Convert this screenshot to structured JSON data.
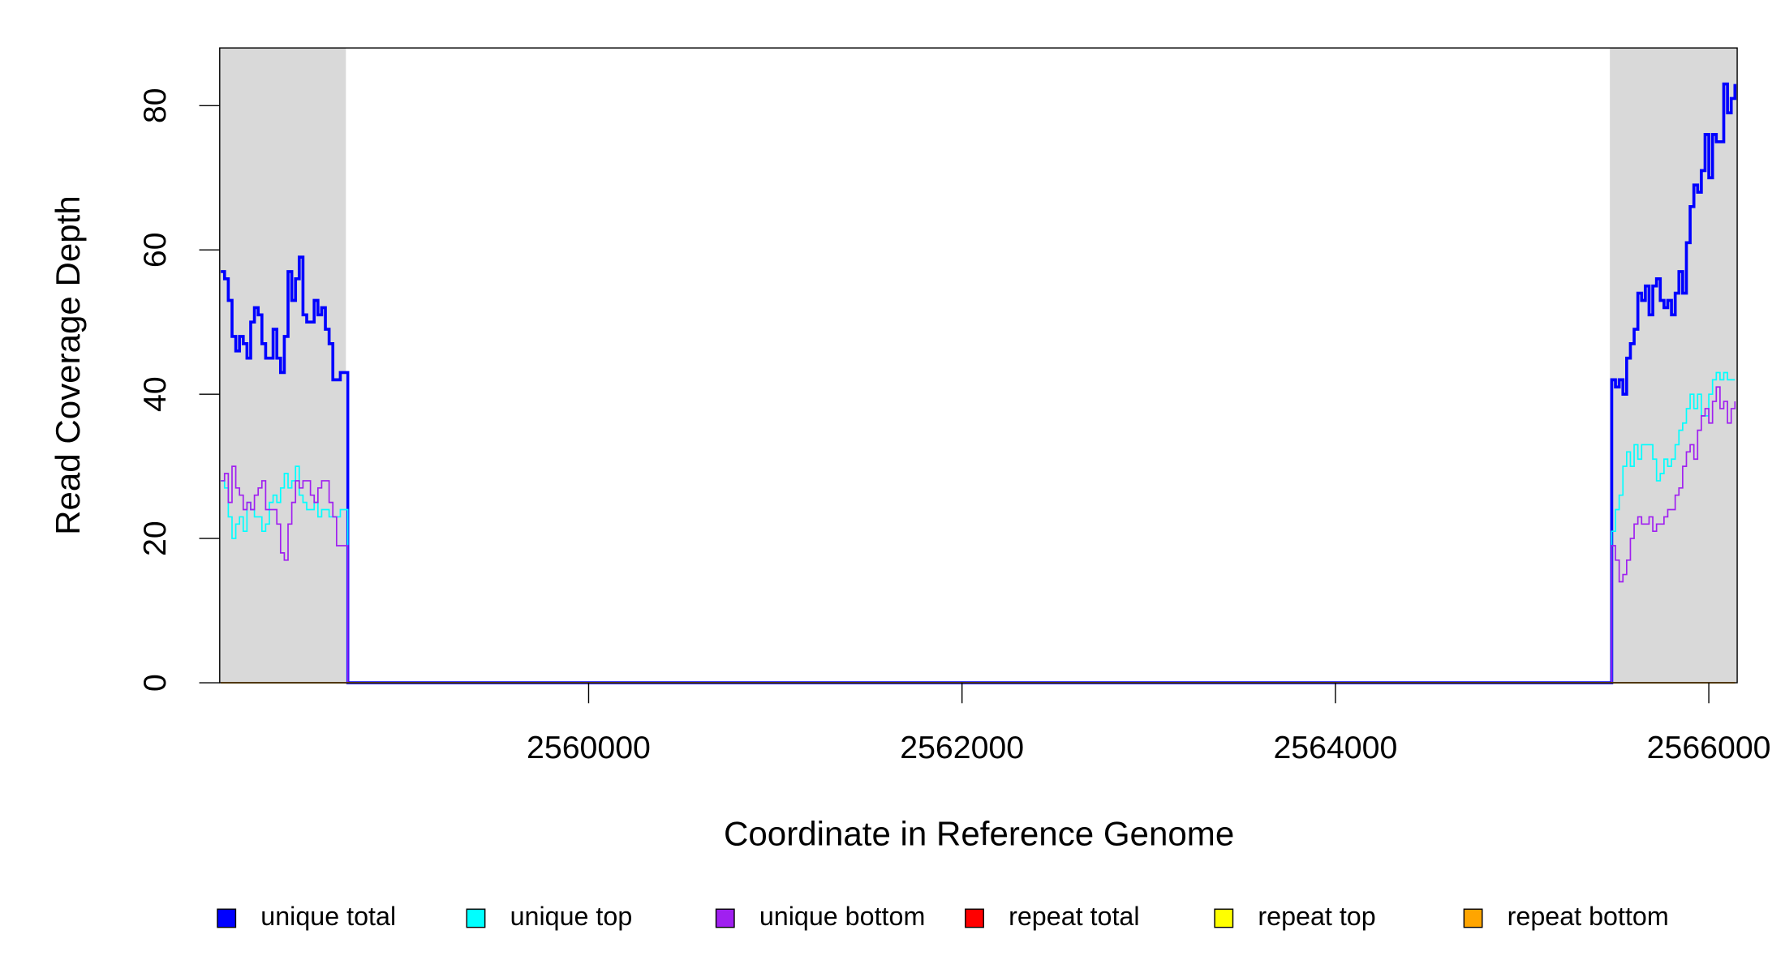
{
  "chart_data": {
    "type": "line",
    "step": true,
    "xlabel": "Coordinate in Reference Genome",
    "ylabel": "Read Coverage Depth",
    "xlim": [
      2558024,
      2566152
    ],
    "ylim": [
      0,
      88
    ],
    "xticks": [
      2560000,
      2562000,
      2564000,
      2566000
    ],
    "yticks": [
      0,
      20,
      40,
      60,
      80
    ],
    "shaded": [
      [
        2558024,
        2558700
      ],
      [
        2565470,
        2566152
      ]
    ],
    "shade_color": "#d9d9d9",
    "legend": "bottom",
    "x": [
      2558030,
      2558050,
      2558070,
      2558090,
      2558110,
      2558130,
      2558150,
      2558170,
      2558190,
      2558210,
      2558230,
      2558250,
      2558270,
      2558290,
      2558310,
      2558330,
      2558350,
      2558370,
      2558390,
      2558410,
      2558430,
      2558450,
      2558470,
      2558490,
      2558510,
      2558530,
      2558550,
      2558570,
      2558590,
      2558610,
      2558630,
      2558650,
      2558670,
      2558690,
      2558710,
      2565460,
      2565480,
      2565500,
      2565520,
      2565540,
      2565560,
      2565580,
      2565600,
      2565620,
      2565640,
      2565660,
      2565680,
      2565700,
      2565720,
      2565740,
      2565760,
      2565780,
      2565800,
      2565820,
      2565840,
      2565860,
      2565880,
      2565900,
      2565920,
      2565940,
      2565960,
      2565980,
      2566000,
      2566020,
      2566040,
      2566060,
      2566080,
      2566100,
      2566120,
      2566140
    ],
    "series": [
      {
        "name": "unique total",
        "color": "#0000ff",
        "values": [
          57,
          56,
          53,
          48,
          46,
          48,
          47,
          45,
          50,
          52,
          51,
          47,
          45,
          45,
          49,
          45,
          43,
          48,
          57,
          53,
          56,
          59,
          51,
          50,
          50,
          53,
          51,
          52,
          49,
          47,
          42,
          42,
          43,
          43,
          0,
          0,
          42,
          41,
          42,
          40,
          45,
          47,
          49,
          54,
          53,
          55,
          51,
          55,
          56,
          53,
          52,
          53,
          51,
          54,
          57,
          54,
          61,
          66,
          69,
          68,
          71,
          76,
          70,
          76,
          75,
          75,
          83,
          79,
          81,
          83
        ]
      },
      {
        "name": "unique top",
        "color": "#00ffff",
        "values": [
          28,
          27,
          23,
          20,
          22,
          23,
          21,
          25,
          24,
          23,
          23,
          21,
          22,
          25,
          26,
          25,
          27,
          29,
          27,
          28,
          30,
          26,
          25,
          24,
          24,
          25,
          23,
          24,
          24,
          23,
          23,
          23,
          24,
          24,
          0,
          0,
          21,
          24,
          26,
          30,
          32,
          30,
          33,
          31,
          33,
          33,
          33,
          31,
          28,
          29,
          31,
          30,
          31,
          33,
          35,
          36,
          38,
          40,
          38,
          40,
          37,
          37,
          40,
          42,
          43,
          42,
          43,
          42,
          42,
          42
        ]
      },
      {
        "name": "unique bottom",
        "color": "#a020f0",
        "values": [
          28,
          29,
          25,
          30,
          27,
          26,
          24,
          25,
          24,
          26,
          27,
          28,
          24,
          24,
          24,
          22,
          18,
          17,
          22,
          25,
          28,
          27,
          28,
          28,
          26,
          25,
          27,
          28,
          28,
          25,
          23,
          19,
          19,
          19,
          0,
          0,
          19,
          17,
          14,
          15,
          17,
          20,
          22,
          23,
          22,
          22,
          23,
          21,
          22,
          22,
          23,
          24,
          24,
          26,
          27,
          30,
          32,
          33,
          31,
          35,
          37,
          38,
          36,
          39,
          41,
          38,
          39,
          36,
          38,
          39
        ]
      },
      {
        "name": "repeat total",
        "color": "#ff0000",
        "values": [
          0,
          0,
          0,
          0,
          0,
          0,
          0,
          0,
          0,
          0,
          0,
          0,
          0,
          0,
          0,
          0,
          0,
          0,
          0,
          0,
          0,
          0,
          0,
          0,
          0,
          0,
          0,
          0,
          0,
          0,
          0,
          0,
          0,
          0,
          0,
          0,
          0,
          0,
          0,
          0,
          0,
          0,
          0,
          0,
          0,
          0,
          0,
          0,
          0,
          0,
          0,
          0,
          0,
          0,
          0,
          0,
          0,
          0,
          0,
          0,
          0,
          0,
          0,
          0,
          0,
          0,
          0,
          0,
          0,
          0
        ]
      },
      {
        "name": "repeat top",
        "color": "#ffff00",
        "values": [
          0,
          0,
          0,
          0,
          0,
          0,
          0,
          0,
          0,
          0,
          0,
          0,
          0,
          0,
          0,
          0,
          0,
          0,
          0,
          0,
          0,
          0,
          0,
          0,
          0,
          0,
          0,
          0,
          0,
          0,
          0,
          0,
          0,
          0,
          0,
          0,
          0,
          0,
          0,
          0,
          0,
          0,
          0,
          0,
          0,
          0,
          0,
          0,
          0,
          0,
          0,
          0,
          0,
          0,
          0,
          0,
          0,
          0,
          0,
          0,
          0,
          0,
          0,
          0,
          0,
          0,
          0,
          0,
          0,
          0
        ]
      },
      {
        "name": "repeat bottom",
        "color": "#ffa500",
        "values": [
          0,
          0,
          0,
          0,
          0,
          0,
          0,
          0,
          0,
          0,
          0,
          0,
          0,
          0,
          0,
          0,
          0,
          0,
          0,
          0,
          0,
          0,
          0,
          0,
          0,
          0,
          0,
          0,
          0,
          0,
          0,
          0,
          0,
          0,
          0,
          0,
          0,
          0,
          0,
          0,
          0,
          0,
          0,
          0,
          0,
          0,
          0,
          0,
          0,
          0,
          0,
          0,
          0,
          0,
          0,
          0,
          0,
          0,
          0,
          0,
          0,
          0,
          0,
          0,
          0,
          0,
          0,
          0,
          0,
          0
        ]
      }
    ]
  }
}
